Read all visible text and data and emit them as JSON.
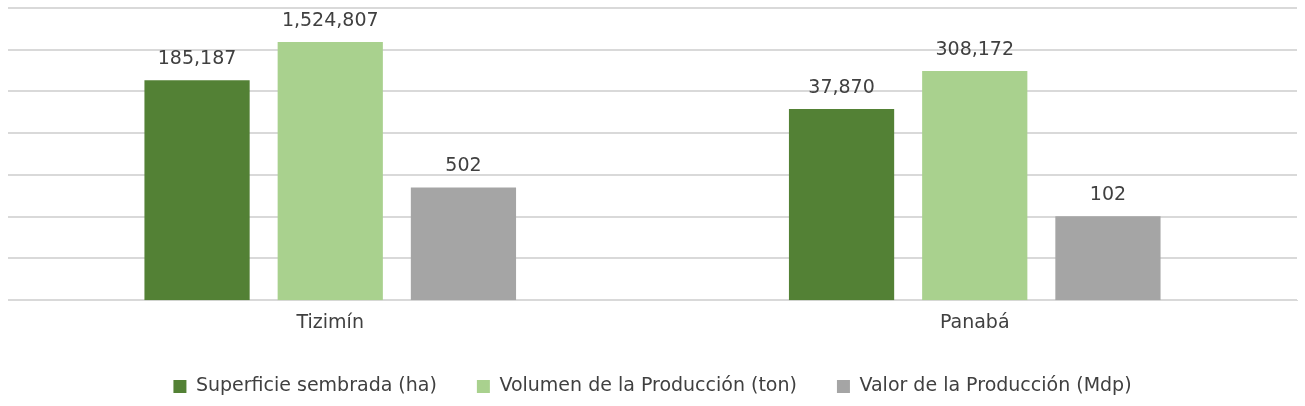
{
  "chart_data": {
    "type": "bar",
    "categories": [
      "Tizimín",
      "Panabá"
    ],
    "series": [
      {
        "name": "Superficie sembrada (ha)",
        "color": "#538135",
        "values": [
          185187,
          37870
        ],
        "value_labels": [
          "185,187",
          "37,870"
        ]
      },
      {
        "name": "Volumen de la Producción (ton)",
        "color": "#a9d18e",
        "values": [
          1524807,
          308172
        ],
        "value_labels": [
          "1,524,807",
          "308,172"
        ]
      },
      {
        "name": "Valor de la Producción (Mdp)",
        "color": "#a5a5a5",
        "values": [
          502,
          102
        ],
        "value_labels": [
          "502",
          "102"
        ]
      }
    ],
    "log": "y",
    "ylim": [
      1,
      10000000
    ],
    "yticks": [
      {
        "value": 1,
        "label": null
      },
      {
        "value": 10,
        "label": null
      },
      {
        "value": 100,
        "label": null
      },
      {
        "value": 1000,
        "label": null
      },
      {
        "value": 10000,
        "label": null
      },
      {
        "value": 100000,
        "label": null
      },
      {
        "value": 1000000,
        "label": null
      },
      {
        "value": 10000000,
        "label": null
      }
    ],
    "tick_labels": "x",
    "grid": "y",
    "legend": "bottom"
  }
}
